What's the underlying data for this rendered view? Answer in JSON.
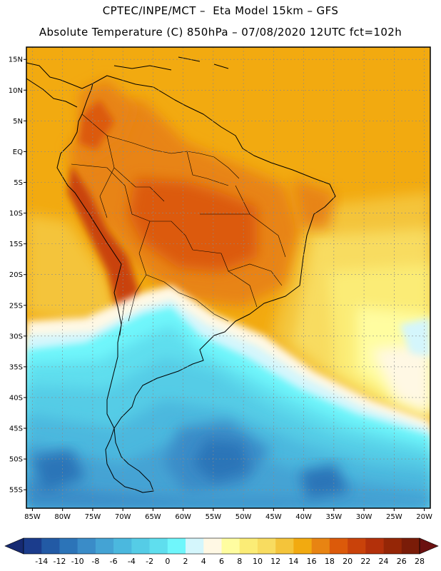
{
  "header": {
    "line1": "CPTEC/INPE/MCT –  Eta Model 15km – GFS",
    "line2": "Absolute Temperature (C) 850hPa – 07/08/2020 12UTC fct=102h"
  },
  "map": {
    "lon_range": [
      -86,
      -19
    ],
    "lat_range": [
      -58,
      17
    ],
    "lat_ticks": [
      {
        "value": 15,
        "label": "15N"
      },
      {
        "value": 10,
        "label": "10N"
      },
      {
        "value": 5,
        "label": "5N"
      },
      {
        "value": 0,
        "label": "EQ"
      },
      {
        "value": -5,
        "label": "5S"
      },
      {
        "value": -10,
        "label": "10S"
      },
      {
        "value": -15,
        "label": "15S"
      },
      {
        "value": -20,
        "label": "20S"
      },
      {
        "value": -25,
        "label": "25S"
      },
      {
        "value": -30,
        "label": "30S"
      },
      {
        "value": -35,
        "label": "35S"
      },
      {
        "value": -40,
        "label": "40S"
      },
      {
        "value": -45,
        "label": "45S"
      },
      {
        "value": -50,
        "label": "50S"
      },
      {
        "value": -55,
        "label": "55S"
      }
    ],
    "lon_ticks": [
      {
        "value": -85,
        "label": "85W"
      },
      {
        "value": -80,
        "label": "80W"
      },
      {
        "value": -75,
        "label": "75W"
      },
      {
        "value": -70,
        "label": "70W"
      },
      {
        "value": -65,
        "label": "65W"
      },
      {
        "value": -60,
        "label": "60W"
      },
      {
        "value": -55,
        "label": "55W"
      },
      {
        "value": -50,
        "label": "50W"
      },
      {
        "value": -45,
        "label": "45W"
      },
      {
        "value": -40,
        "label": "40W"
      },
      {
        "value": -35,
        "label": "35W"
      },
      {
        "value": -30,
        "label": "30W"
      },
      {
        "value": -25,
        "label": "25W"
      },
      {
        "value": -20,
        "label": "20W"
      }
    ]
  },
  "colorbar": {
    "colors": [
      "#1b3c8c",
      "#225aa5",
      "#2c74b8",
      "#3a8cc8",
      "#44a3d4",
      "#4bb8de",
      "#55cce6",
      "#5fdeee",
      "#6ff6fb",
      "#d4f6fc",
      "#fff8e4",
      "#fffda0",
      "#fbec76",
      "#f8dc60",
      "#f4c43a",
      "#f2aa10",
      "#e88412",
      "#dc5a0a",
      "#c9420a",
      "#b3300a",
      "#952606",
      "#7a1c08"
    ],
    "under_color": "#162a72",
    "over_color": "#6b1010",
    "labels": [
      "-14",
      "-12",
      "-10",
      "-8",
      "-6",
      "-4",
      "-2",
      "0",
      "2",
      "4",
      "6",
      "8",
      "10",
      "12",
      "14",
      "16",
      "18",
      "20",
      "22",
      "24",
      "26",
      "28"
    ]
  }
}
